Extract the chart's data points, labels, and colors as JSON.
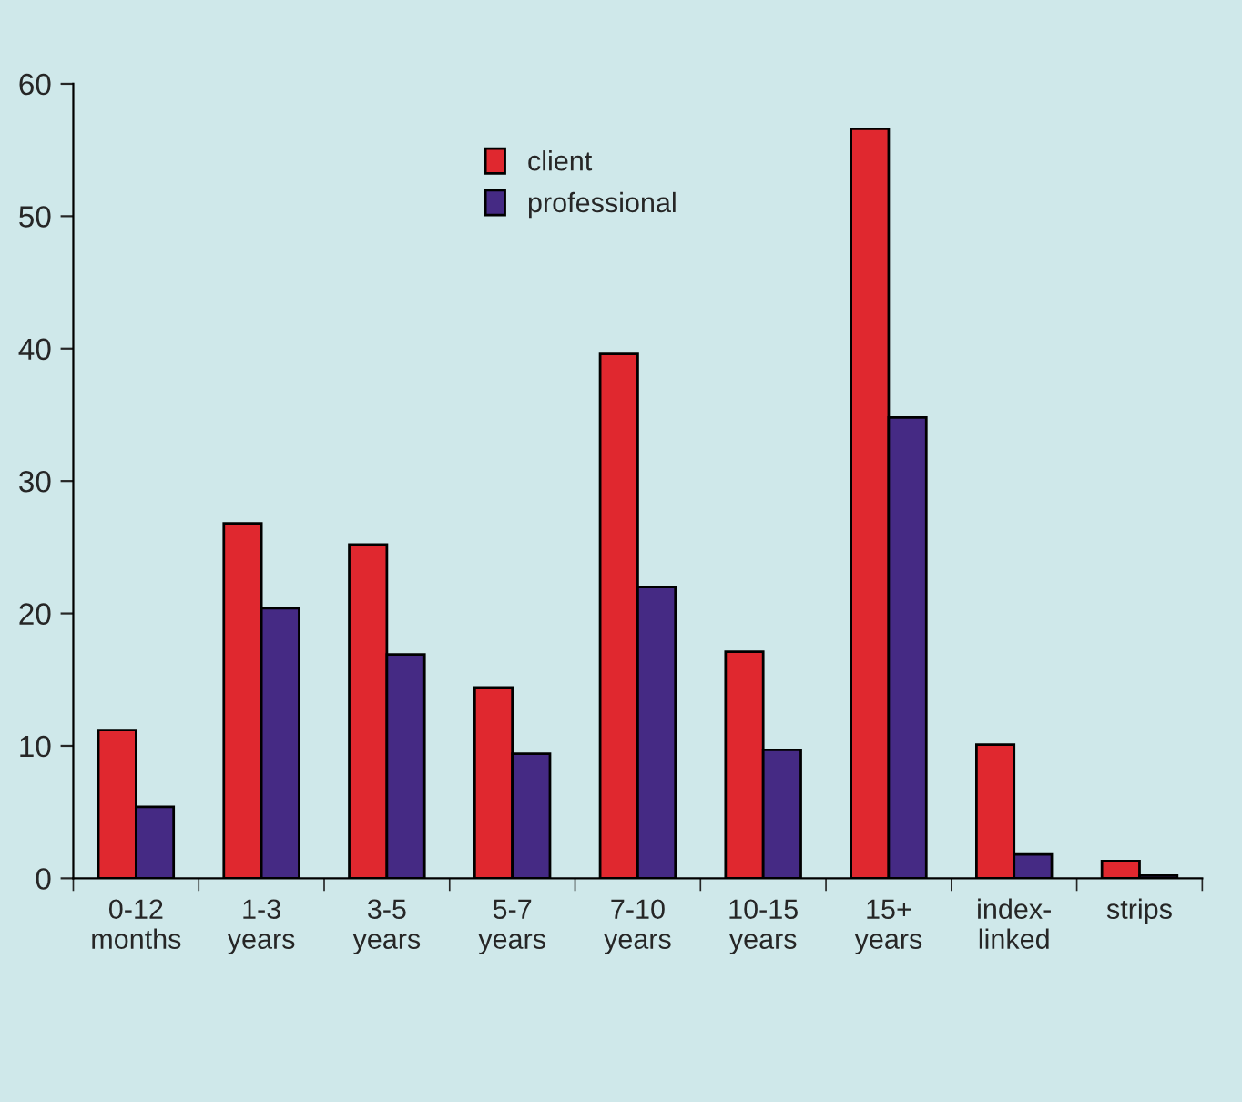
{
  "chart_data": {
    "type": "bar",
    "categories": [
      "0-12\nmonths",
      "1-3\nyears",
      "3-5\nyears",
      "5-7\nyears",
      "7-10\nyears",
      "10-15\nyears",
      "15+\nyears",
      "index-\nlinked",
      "strips"
    ],
    "series": [
      {
        "name": "client",
        "color": "#e0282f",
        "values": [
          11.2,
          26.8,
          25.2,
          14.4,
          39.6,
          17.1,
          56.6,
          10.1,
          1.3
        ]
      },
      {
        "name": "professional",
        "color": "#452a84",
        "values": [
          5.4,
          20.4,
          16.9,
          9.4,
          22.0,
          9.7,
          34.8,
          1.8,
          0.2
        ]
      }
    ],
    "ylim": [
      0,
      60
    ],
    "yticks": [
      0,
      10,
      20,
      30,
      40,
      50,
      60
    ],
    "grid": false,
    "legend": "top"
  }
}
